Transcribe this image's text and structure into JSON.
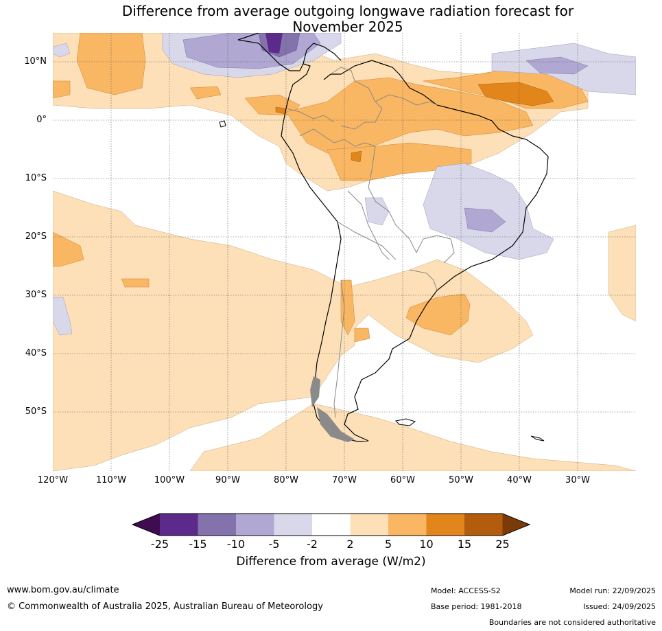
{
  "title_line1": "Difference from average outgoing longwave radiation forecast for",
  "title_line2": "November 2025",
  "lat_labels": [
    "10°N",
    "0°",
    "10°S",
    "20°S",
    "30°S",
    "40°S",
    "50°S"
  ],
  "lon_labels": [
    "120°W",
    "110°W",
    "100°W",
    "90°W",
    "80°W",
    "70°W",
    "60°W",
    "50°W",
    "40°W",
    "30°W"
  ],
  "colorbar": {
    "ticks": [
      "-25",
      "-15",
      "-10",
      "-5",
      "-2",
      "2",
      "5",
      "10",
      "15",
      "25"
    ],
    "title": "Difference from average (W/m2)",
    "colors": [
      "#3f0c52",
      "#5c2a8a",
      "#8472ad",
      "#b0a8d2",
      "#d8d8ea",
      "#ffffff",
      "#fde0b8",
      "#fab763",
      "#e2861c",
      "#b45c0e",
      "#7a3b08"
    ]
  },
  "footer": {
    "website": "www.bom.gov.au/climate",
    "copyright": "© Commonwealth of Australia 2025, Australian Bureau of Meteorology",
    "model": "Model: ACCESS-S2",
    "base_period": "Base period: 1981-2018",
    "model_run": "Model run: 22/09/2025",
    "issued": "Issued: 24/09/2025",
    "disclaimer": "Boundaries are not considered authoritative"
  }
}
